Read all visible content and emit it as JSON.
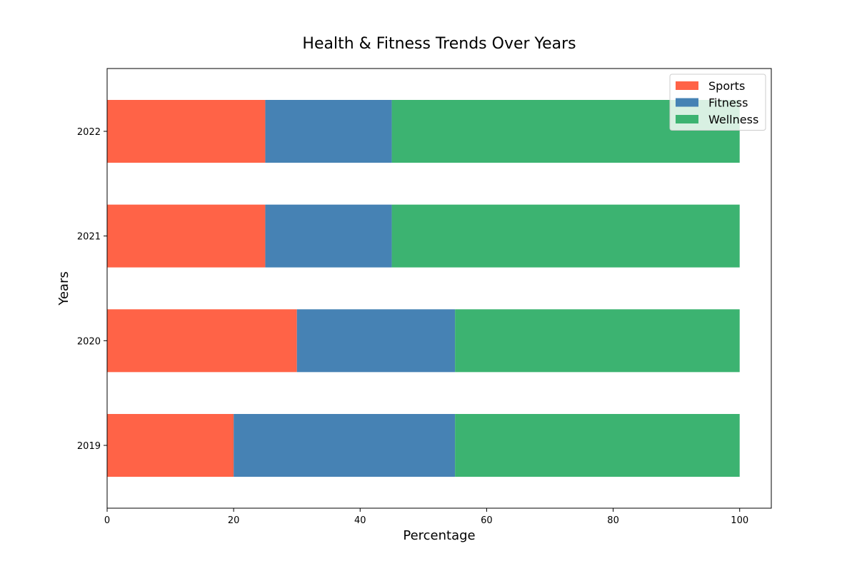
{
  "chart_data": {
    "type": "bar",
    "orientation": "horizontal",
    "stacked": true,
    "title": "Health & Fitness Trends Over Years",
    "xlabel": "Percentage",
    "ylabel": "Years",
    "categories": [
      "2019",
      "2020",
      "2021",
      "2022"
    ],
    "series": [
      {
        "name": "Sports",
        "values": [
          20,
          30,
          25,
          25
        ],
        "color": "#ff6347"
      },
      {
        "name": "Fitness",
        "values": [
          35,
          25,
          20,
          20
        ],
        "color": "#4682b4"
      },
      {
        "name": "Wellness",
        "values": [
          45,
          45,
          55,
          55
        ],
        "color": "#3cb371"
      }
    ],
    "xlim": [
      0,
      105
    ],
    "xticks": [
      0,
      20,
      40,
      60,
      80,
      100
    ],
    "xtick_labels": [
      "0",
      "20",
      "40",
      "60",
      "80",
      "100"
    ],
    "grid": false,
    "legend_position": "top-right"
  }
}
